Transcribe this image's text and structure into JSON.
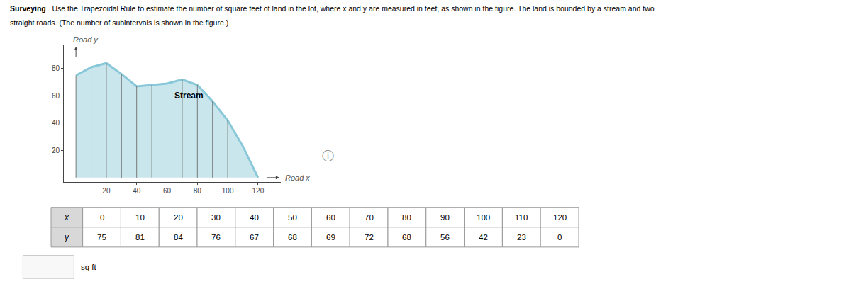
{
  "chart_data": {
    "type": "area",
    "title": "Surveying",
    "subtitle": "Use the Trapezoidal Rule to estimate the number of square feet of land in the lot, where x and y are measured in feet, as shown in the figure. The land is bounded by a stream and two straight roads. (The number of subintervals is shown in the figure.)",
    "x": [
      0,
      10,
      20,
      30,
      40,
      50,
      60,
      70,
      80,
      90,
      100,
      110,
      120
    ],
    "values": [
      75,
      81,
      84,
      76,
      67,
      68,
      69,
      72,
      68,
      56,
      42,
      23,
      0
    ],
    "color": "#88c8d8",
    "xlabel": "Road x",
    "ylabel": "Road y",
    "xlim": [
      -8,
      135
    ],
    "ylim": [
      -3,
      97
    ],
    "xticks": [
      20,
      40,
      60,
      80,
      100,
      120
    ],
    "yticks": [
      20,
      40,
      60,
      80
    ],
    "grid": false,
    "annotations": [
      {
        "text": "Stream",
        "x": 64,
        "y": 60
      }
    ],
    "table": {
      "row_labels": [
        "x",
        "y"
      ]
    },
    "answer_label": "sq ft",
    "info_icon": "ⓘ"
  }
}
